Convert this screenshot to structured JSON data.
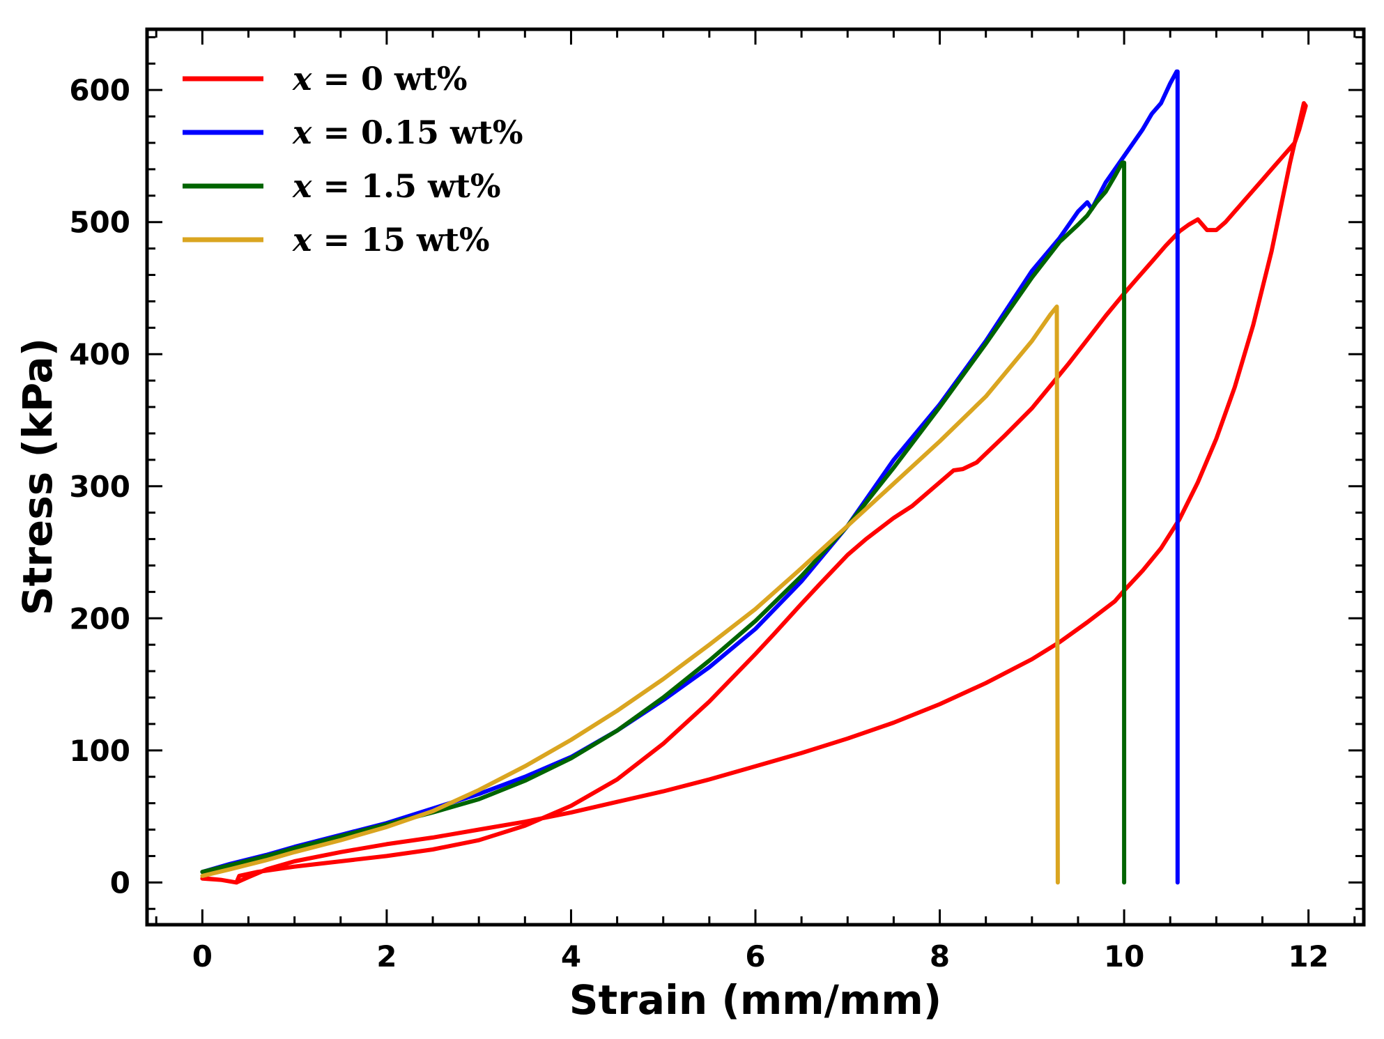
{
  "chart_data": {
    "type": "line",
    "xlabel": "Strain (mm/mm)",
    "ylabel": "Stress (kPa)",
    "xlim": [
      -0.6,
      12.6
    ],
    "ylim": [
      -32,
      646
    ],
    "xticks": [
      0,
      2,
      4,
      6,
      8,
      10,
      12
    ],
    "xtick_labels": [
      "0",
      "2",
      "4",
      "6",
      "8",
      "10",
      "12"
    ],
    "yticks": [
      0,
      100,
      200,
      300,
      400,
      500,
      600
    ],
    "ytick_labels": [
      "0",
      "100",
      "200",
      "300",
      "400",
      "500",
      "600"
    ],
    "grid": false,
    "legend_position": "top-left",
    "series": [
      {
        "name": "x = 0 wt%",
        "legend_var": "x",
        "legend_rest": " = 0 wt%",
        "color": "#ff0000",
        "x": [
          0,
          0.2,
          0.37,
          0.5,
          0.7,
          1.0,
          1.5,
          2.0,
          2.5,
          3.0,
          3.5,
          4.0,
          4.5,
          5.0,
          5.5,
          6.0,
          6.5,
          7.0,
          7.5,
          8.0,
          8.5,
          9.0,
          9.3,
          9.6,
          9.9,
          10.0,
          10.2,
          10.4,
          10.6,
          10.8,
          11.0,
          11.2,
          11.4,
          11.6,
          11.8,
          11.95,
          11.97,
          11.9,
          11.85,
          11.8,
          11.7,
          11.6,
          11.5,
          11.4,
          11.3,
          11.2,
          11.1,
          11.0,
          10.9,
          10.8,
          10.7,
          10.6,
          10.45,
          10.3,
          10.15,
          10.0,
          9.8,
          9.6,
          9.4,
          9.2,
          9.0,
          8.7,
          8.4,
          8.25,
          8.15,
          8.0,
          7.7,
          7.5,
          7.2,
          7.0,
          6.7,
          6.5,
          6.2,
          6.0,
          5.5,
          5.0,
          4.5,
          4.0,
          3.5,
          3.0,
          2.5,
          2.0,
          1.5,
          1.0,
          0.6,
          0.4,
          0.37,
          0.2,
          0.05,
          0
        ],
        "y": [
          3,
          2,
          0,
          4,
          10,
          16,
          23,
          29,
          34,
          40,
          46,
          53,
          61,
          69,
          78,
          88,
          98,
          109,
          121,
          135,
          151,
          169,
          182,
          197,
          213,
          221,
          236,
          253,
          275,
          303,
          336,
          375,
          422,
          478,
          545,
          590,
          588,
          570,
          560,
          556,
          548,
          540,
          532,
          524,
          516,
          508,
          500,
          494,
          494,
          502,
          498,
          493,
          482,
          470,
          458,
          446,
          429,
          411,
          393,
          376,
          359,
          338,
          318,
          313,
          312,
          303,
          285,
          276,
          260,
          248,
          226,
          211,
          188,
          173,
          137,
          105,
          78,
          58,
          43,
          32,
          25,
          20,
          16,
          12,
          8,
          5,
          0,
          2,
          3,
          3
        ]
      },
      {
        "name": "x = 0.15 wt%",
        "legend_var": "x",
        "legend_rest": " = 0.15 wt%",
        "color": "#0000ff",
        "x": [
          0,
          0.3,
          0.7,
          1.0,
          1.5,
          2.0,
          2.5,
          3.0,
          3.5,
          4.0,
          4.5,
          5.0,
          5.5,
          6.0,
          6.5,
          7.0,
          7.5,
          8.0,
          8.5,
          9.0,
          9.3,
          9.5,
          9.6,
          9.65,
          9.8,
          10.0,
          10.2,
          10.3,
          10.4,
          10.5,
          10.57,
          10.58,
          10.58
        ],
        "y": [
          8,
          14,
          21,
          27,
          36,
          45,
          56,
          67,
          80,
          95,
          115,
          138,
          163,
          192,
          228,
          270,
          320,
          362,
          410,
          463,
          488,
          508,
          515,
          510,
          530,
          550,
          570,
          582,
          590,
          605,
          614,
          614,
          0
        ]
      },
      {
        "name": "x = 1.5 wt%",
        "legend_var": "x",
        "legend_rest": " = 1.5 wt%",
        "color": "#006400",
        "x": [
          0,
          0.3,
          0.7,
          1.0,
          1.5,
          2.0,
          2.5,
          3.0,
          3.5,
          4.0,
          4.5,
          5.0,
          5.5,
          6.0,
          6.5,
          7.0,
          7.5,
          8.0,
          8.5,
          9.0,
          9.3,
          9.5,
          9.6,
          9.7,
          9.8,
          9.9,
          9.98,
          10.0,
          10.0
        ],
        "y": [
          8,
          13,
          20,
          26,
          35,
          44,
          53,
          63,
          77,
          94,
          115,
          140,
          168,
          198,
          232,
          270,
          314,
          360,
          408,
          458,
          485,
          498,
          505,
          515,
          523,
          535,
          545,
          545,
          0
        ]
      },
      {
        "name": "x = 15 wt%",
        "legend_var": "x",
        "legend_rest": " = 15 wt%",
        "color": "#daa520",
        "x": [
          0,
          0.3,
          0.7,
          1.0,
          1.5,
          2.0,
          2.5,
          3.0,
          3.5,
          4.0,
          4.5,
          5.0,
          5.5,
          6.0,
          6.5,
          7.0,
          7.5,
          8.0,
          8.5,
          9.0,
          9.2,
          9.27,
          9.28
        ],
        "y": [
          5,
          10,
          17,
          23,
          32,
          42,
          54,
          70,
          88,
          108,
          130,
          154,
          180,
          207,
          238,
          270,
          302,
          334,
          368,
          410,
          430,
          436,
          0
        ]
      }
    ]
  }
}
